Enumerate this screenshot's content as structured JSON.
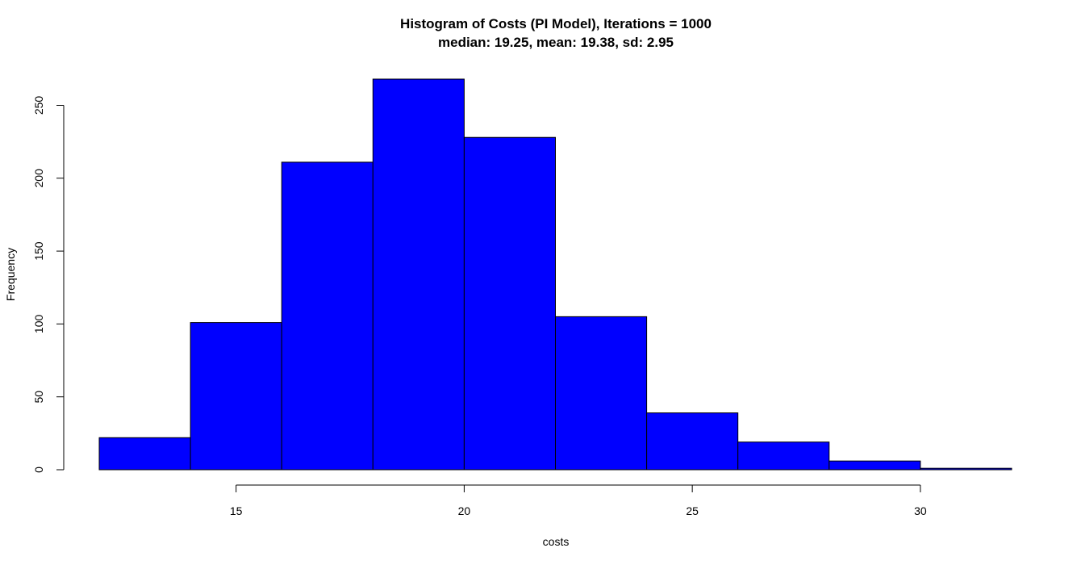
{
  "chart_data": {
    "type": "bar",
    "title": "Histogram of Costs (PI Model), Iterations = 1000",
    "subtitle": "median: 19.25, mean: 19.38, sd: 2.95",
    "xlabel": "costs",
    "ylabel": "Frequency",
    "bins": [
      {
        "start": 12,
        "end": 14,
        "count": 22
      },
      {
        "start": 14,
        "end": 16,
        "count": 101
      },
      {
        "start": 16,
        "end": 18,
        "count": 211
      },
      {
        "start": 18,
        "end": 20,
        "count": 268
      },
      {
        "start": 20,
        "end": 22,
        "count": 228
      },
      {
        "start": 22,
        "end": 24,
        "count": 105
      },
      {
        "start": 24,
        "end": 26,
        "count": 39
      },
      {
        "start": 26,
        "end": 28,
        "count": 19
      },
      {
        "start": 28,
        "end": 30,
        "count": 6
      },
      {
        "start": 30,
        "end": 32,
        "count": 1
      }
    ],
    "xlim": [
      12,
      32
    ],
    "ylim": [
      0,
      268
    ],
    "x_ticks": [
      15,
      20,
      25,
      30
    ],
    "y_ticks": [
      0,
      50,
      100,
      150,
      200,
      250
    ],
    "grid": false,
    "bar_color": "#0000ff",
    "bar_edge_color": "#000000"
  }
}
